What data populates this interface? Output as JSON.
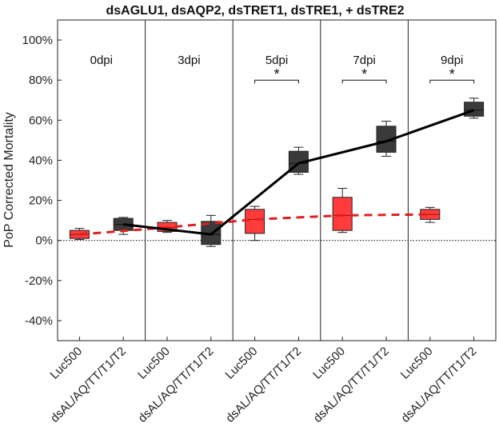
{
  "chart_data": {
    "type": "box",
    "title": "dsAGLU1, dsAQP2, dsTRET1, dsTRE1, + dsTRE2",
    "ylabel": "PoP Corrected Mortality",
    "ylim": [
      -50,
      110
    ],
    "yticks": [
      "-40%",
      "-20%",
      "0%",
      "20%",
      "40%",
      "60%",
      "80%",
      "100%"
    ],
    "ytick_values": [
      -40,
      -20,
      0,
      20,
      40,
      60,
      80,
      100
    ],
    "panels": [
      "0dpi",
      "3dpi",
      "5dpi",
      "7dpi",
      "9dpi"
    ],
    "categories": [
      "Luc500",
      "dsAL/AQ/TT/T1/T2",
      "Luc500",
      "dsAL/AQ/TT/T1/T2",
      "Luc500",
      "dsAL/AQ/TT/T1/T2",
      "Luc500",
      "dsAL/AQ/TT/T1/T2",
      "Luc500",
      "dsAL/AQ/TT/T1/T2"
    ],
    "significance": [
      "",
      "",
      "*",
      "*",
      "*"
    ],
    "series": [
      {
        "name": "Luc500",
        "color": "#ff3b3b",
        "line_color": "#e02020",
        "line_style": "dashed",
        "boxes": [
          {
            "min": 0.5,
            "q1": 1,
            "median": 3,
            "q3": 5,
            "max": 6
          },
          {
            "min": 4,
            "q1": 4.5,
            "median": 6.5,
            "q3": 9,
            "max": 10
          },
          {
            "min": 0,
            "q1": 3.5,
            "median": 10.5,
            "q3": 15.5,
            "max": 17
          },
          {
            "min": 4,
            "q1": 5,
            "median": 12.5,
            "q3": 21.5,
            "max": 26
          },
          {
            "min": 9,
            "q1": 10.5,
            "median": 13,
            "q3": 15.5,
            "max": 16.5
          }
        ],
        "trend": [
          3,
          6.5,
          10.5,
          12.5,
          13
        ]
      },
      {
        "name": "dsAL/AQ/TT/T1/T2",
        "color": "#3a3a3a",
        "line_color": "#000000",
        "line_style": "solid",
        "boxes": [
          {
            "min": 3,
            "q1": 5,
            "median": 8,
            "q3": 11,
            "max": 11.5
          },
          {
            "min": -3,
            "q1": -2,
            "median": 3,
            "q3": 9.5,
            "max": 12.5
          },
          {
            "min": 33,
            "q1": 34,
            "median": 38.5,
            "q3": 44.5,
            "max": 46.5
          },
          {
            "min": 42,
            "q1": 44,
            "median": 49.5,
            "q3": 57,
            "max": 59.5
          },
          {
            "min": 61,
            "q1": 62,
            "median": 65,
            "q3": 69,
            "max": 71
          }
        ],
        "trend": [
          8,
          3,
          38.5,
          49.5,
          65
        ]
      }
    ],
    "grid": false,
    "zero_line": "dotted"
  }
}
